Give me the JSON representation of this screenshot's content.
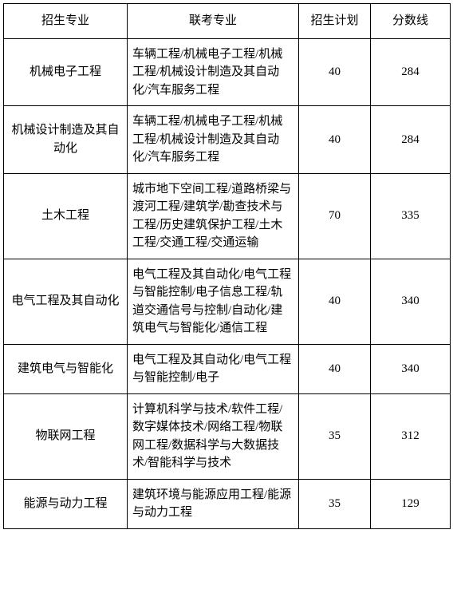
{
  "table": {
    "headers": {
      "major": "招生专业",
      "exam": "联考专业",
      "plan": "招生计划",
      "score": "分数线"
    },
    "rows": [
      {
        "major": "机械电子工程",
        "exam": "车辆工程/机械电子工程/机械工程/机械设计制造及其自动化/汽车服务工程",
        "plan": "40",
        "score": "284"
      },
      {
        "major": "机械设计制造及其自动化",
        "exam": "车辆工程/机械电子工程/机械工程/机械设计制造及其自动化/汽车服务工程",
        "plan": "40",
        "score": "284"
      },
      {
        "major": "土木工程",
        "exam": "城市地下空间工程/道路桥梁与渡河工程/建筑学/勘查技术与工程/历史建筑保护工程/土木工程/交通工程/交通运输",
        "plan": "70",
        "score": "335"
      },
      {
        "major": "电气工程及其自动化",
        "exam": "电气工程及其自动化/电气工程与智能控制/电子信息工程/轨道交通信号与控制/自动化/建筑电气与智能化/通信工程",
        "plan": "40",
        "score": "340"
      },
      {
        "major": "建筑电气与智能化",
        "exam": "电气工程及其自动化/电气工程与智能控制/电子",
        "plan": "40",
        "score": "340"
      },
      {
        "major": "物联网工程",
        "exam": "计算机科学与技术/软件工程/数字媒体技术/网络工程/物联网工程/数据科学与大数据技术/智能科学与技术",
        "plan": "35",
        "score": "312"
      },
      {
        "major": "能源与动力工程",
        "exam": "建筑环境与能源应用工程/能源与动力工程",
        "plan": "35",
        "score": "129"
      }
    ]
  }
}
